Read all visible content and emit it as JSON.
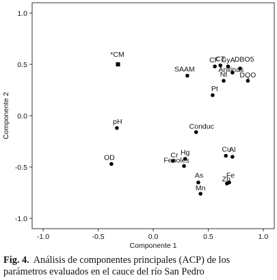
{
  "chart_data": {
    "type": "scatter",
    "xlabel": "Componente 1",
    "ylabel": "Componente 2",
    "xlim": [
      -1.1,
      1.1
    ],
    "ylim": [
      -1.1,
      1.1
    ],
    "xticks": [
      "-1.0",
      "-0.5",
      "0.0",
      "0.5",
      "1.0"
    ],
    "yticks": [
      "-1.0",
      "-0.5",
      "0.0",
      "0.5",
      "1.0"
    ],
    "grid": false,
    "legend": "none",
    "points": [
      {
        "label": "*CM",
        "x": -0.32,
        "y": 0.5,
        "marker": "square"
      },
      {
        "label": "CF",
        "x": 0.56,
        "y": 0.48
      },
      {
        "label": "CT",
        "x": 0.61,
        "y": 0.49
      },
      {
        "label": "GyA",
        "x": 0.68,
        "y": 0.48
      },
      {
        "label": "DBO5",
        "x": 0.79,
        "y": 0.46
      },
      {
        "label": "Anilinas",
        "x": 0.72,
        "y": 0.42
      },
      {
        "label": "SAAM",
        "x": 0.31,
        "y": 0.39
      },
      {
        "label": "Nt",
        "x": 0.64,
        "y": 0.34
      },
      {
        "label": "DQO",
        "x": 0.86,
        "y": 0.34
      },
      {
        "label": "Pt",
        "x": 0.54,
        "y": 0.2
      },
      {
        "label": "pH",
        "x": -0.33,
        "y": -0.12
      },
      {
        "label": "Conduc",
        "x": 0.39,
        "y": -0.16
      },
      {
        "label": "OD",
        "x": -0.38,
        "y": -0.47
      },
      {
        "label": "Cr",
        "x": 0.18,
        "y": -0.44
      },
      {
        "label": "Hg",
        "x": 0.29,
        "y": -0.42
      },
      {
        "label": "Fenoles",
        "x": 0.28,
        "y": -0.49
      },
      {
        "label": "Cu",
        "x": 0.66,
        "y": -0.39
      },
      {
        "label": "Al",
        "x": 0.72,
        "y": -0.4
      },
      {
        "label": "As",
        "x": 0.41,
        "y": -0.65
      },
      {
        "label": "Fe",
        "x": 0.69,
        "y": -0.65
      },
      {
        "label": "Zn",
        "x": 0.67,
        "y": -0.66
      },
      {
        "label": "Mn",
        "x": 0.43,
        "y": -0.76
      }
    ]
  },
  "caption": {
    "label": "Fig. 4.",
    "text": "Análisis de componentes principales (ACP) de los parámetros evaluados en el cauce del río San Pedro"
  }
}
